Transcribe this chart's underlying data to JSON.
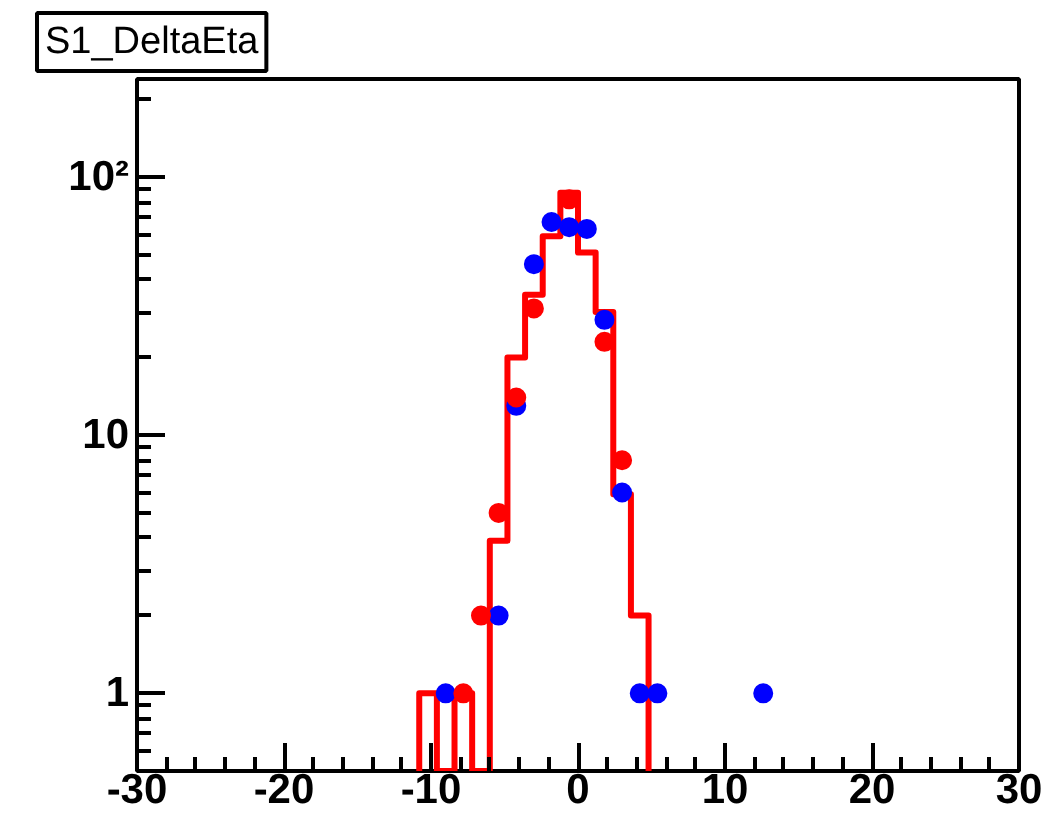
{
  "chart_data": {
    "type": "histogram",
    "title": "S1_DeltaEta",
    "xlim": [
      -30,
      30
    ],
    "xticks": [
      -30,
      -20,
      -10,
      0,
      10,
      20,
      30
    ],
    "ylim": [
      0.5,
      240
    ],
    "yticks": [
      1,
      10,
      {
        "value": 100,
        "label": "10²"
      }
    ],
    "log": "y",
    "grid": false,
    "marker": "circle",
    "series": [
      {
        "color": "#ff0000",
        "bins": [
          -10.8,
          -9.6,
          -8.4,
          -7.2,
          -6.0,
          -4.8,
          -3.6,
          -2.4,
          -1.2,
          0,
          1.2,
          2.4,
          3.6,
          4.8
        ],
        "values": [
          1,
          null,
          1,
          null,
          3.9,
          20,
          35,
          59,
          87,
          51,
          30,
          5.9,
          2.0
        ]
      },
      {
        "type": "scatter",
        "color": "#0000ff",
        "x": [
          -9.0,
          -5.4,
          -4.2,
          -3.0,
          -1.8,
          -0.6,
          0.6,
          1.8,
          3.0,
          4.2,
          5.4,
          12.6
        ],
        "values": [
          1,
          2,
          13,
          46,
          67,
          64,
          63,
          28,
          6,
          1,
          1,
          1
        ]
      },
      {
        "type": "scatter",
        "color": "#ff0000",
        "x": [
          -7.8,
          -6.6,
          -5.4,
          -4.2,
          -3.0,
          -0.6,
          1.8,
          3.0
        ],
        "values": [
          1,
          2,
          5,
          14,
          31,
          82,
          23,
          8
        ]
      }
    ]
  }
}
